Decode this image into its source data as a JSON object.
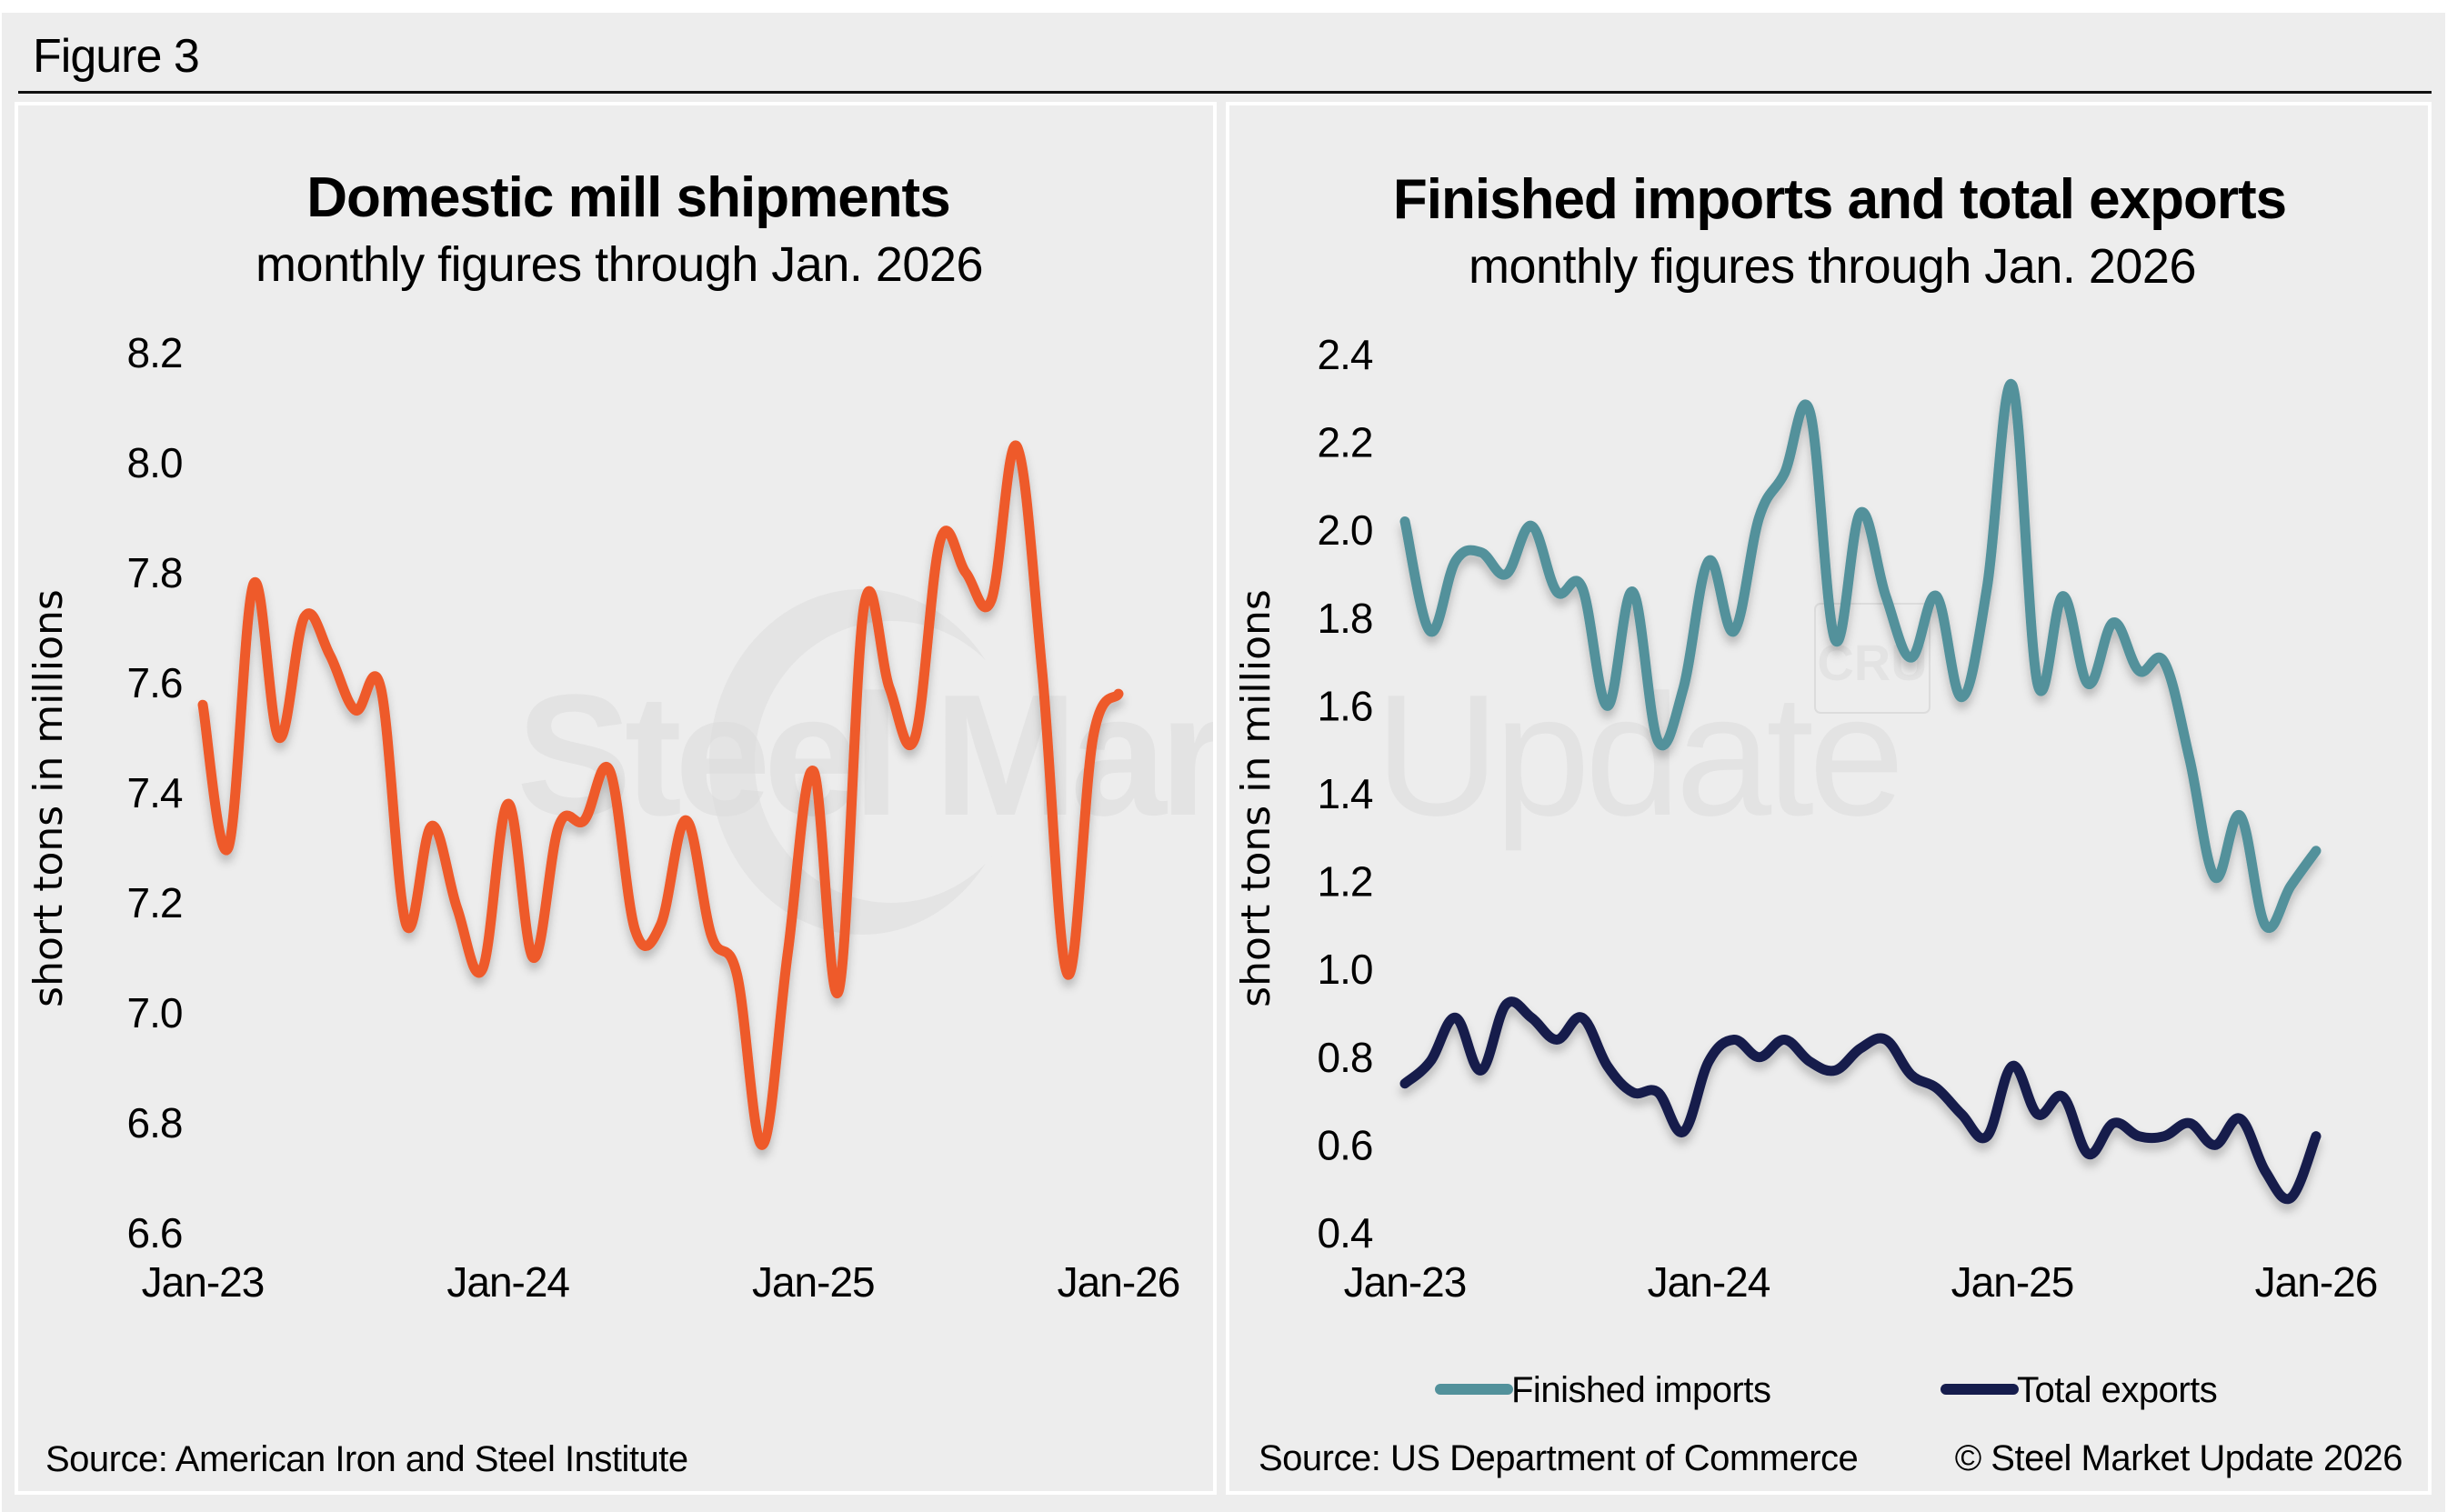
{
  "figure_label": "Figure 3",
  "watermark": {
    "brand_bold": "Steel Market",
    "brand_light": "Update",
    "badge": "CRU"
  },
  "colors": {
    "shipments": "#ee5a2c",
    "imports": "#52919b",
    "exports": "#151c4c",
    "background": "#ededed"
  },
  "chart_data": [
    {
      "type": "line",
      "title": "Domestic mill shipments",
      "subtitle": "monthly figures through Jan. 2026",
      "xlabel": "",
      "ylabel": "short tons in millions",
      "x_ticks": [
        "Jan-23",
        "Jan-24",
        "Jan-25",
        "Jan-26"
      ],
      "y_ticks": [
        "8.2",
        "8.0",
        "7.8",
        "7.6",
        "7.4",
        "7.2",
        "7.0",
        "6.8",
        "6.6"
      ],
      "ylim": [
        6.6,
        8.2
      ],
      "x_start": "Jan-23",
      "x_end": "Jan-26",
      "grid": false,
      "legend": "none",
      "source": "Source: American Iron and Steel Institute",
      "series": [
        {
          "name": "Domestic mill shipments",
          "color": "#ee5a2c",
          "values": [
            7.56,
            7.3,
            7.78,
            7.5,
            7.72,
            7.65,
            7.55,
            7.59,
            7.16,
            7.34,
            7.19,
            7.08,
            7.38,
            7.1,
            7.34,
            7.35,
            7.44,
            7.15,
            7.16,
            7.35,
            7.14,
            7.07,
            6.76,
            7.11,
            7.44,
            7.04,
            7.74,
            7.59,
            7.5,
            7.86,
            7.8,
            7.75,
            8.03,
            7.62,
            7.07,
            7.5,
            7.58
          ]
        }
      ]
    },
    {
      "type": "line",
      "title": "Finished imports and total exports",
      "subtitle": "monthly figures through Jan. 2026",
      "xlabel": "",
      "ylabel": "short tons in millions",
      "x_ticks": [
        "Jan-23",
        "Jan-24",
        "Jan-25",
        "Jan-26"
      ],
      "y_ticks": [
        "2.4",
        "2.2",
        "2.0",
        "1.8",
        "1.6",
        "1.4",
        "1.2",
        "1.0",
        "0.8",
        "0.6",
        "0.4"
      ],
      "ylim": [
        0.4,
        2.4
      ],
      "x_start": "Jan-23",
      "x_end": "Jan-26",
      "grid": false,
      "legend": "bottom",
      "source": "Source: US Department of Commerce",
      "copyright": "© Steel Market Update 2026",
      "series": [
        {
          "name": "Finished imports",
          "color": "#52919b",
          "values": [
            2.02,
            1.77,
            1.93,
            1.95,
            1.9,
            2.01,
            1.86,
            1.87,
            1.6,
            1.86,
            1.52,
            1.64,
            1.93,
            1.77,
            2.03,
            2.13,
            2.27,
            1.75,
            2.04,
            1.85,
            1.71,
            1.85,
            1.62,
            1.87,
            2.33,
            1.65,
            1.85,
            1.65,
            1.79,
            1.68,
            1.7,
            1.48,
            1.21,
            1.35,
            1.1,
            1.19,
            1.27
          ]
        },
        {
          "name": "Total exports",
          "color": "#151c4c",
          "values": [
            0.74,
            0.79,
            0.89,
            0.77,
            0.92,
            0.89,
            0.84,
            0.89,
            0.78,
            0.72,
            0.72,
            0.63,
            0.79,
            0.84,
            0.8,
            0.84,
            0.79,
            0.77,
            0.82,
            0.84,
            0.76,
            0.73,
            0.67,
            0.62,
            0.78,
            0.67,
            0.71,
            0.58,
            0.65,
            0.62,
            0.62,
            0.65,
            0.6,
            0.66,
            0.54,
            0.48,
            0.62
          ]
        }
      ]
    }
  ]
}
